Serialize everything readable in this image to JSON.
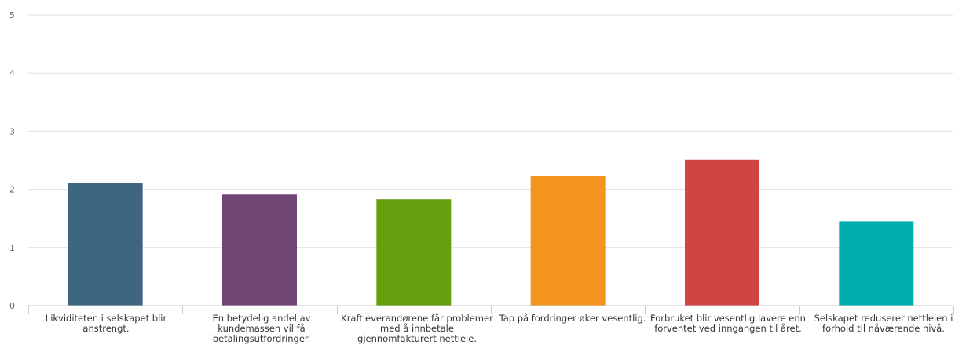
{
  "chart_data": {
    "type": "bar",
    "title": "",
    "xlabel": "",
    "ylabel": "",
    "ylim": [
      0,
      5
    ],
    "yticks": [
      0,
      1,
      2,
      3,
      4,
      5
    ],
    "grid": true,
    "categories": [
      "Likviditeten i selskapet blir anstrengt.",
      "En betydelig andel av kundemassen vil få betalingsutfordringer.",
      "Kraftleverandørene får problemer med å innbetale gjennomfakturert nettleie.",
      "Tap på fordringer øker vesentlig.",
      "Forbruket blir vesentlig lavere enn forventet ved inngangen til året.",
      "Selskapet reduserer nettleien i forhold til nåværende nivå."
    ],
    "values": [
      2.11,
      1.91,
      1.83,
      2.23,
      2.51,
      1.45
    ],
    "colors": [
      "#3f6680",
      "#6e4573",
      "#659f0e",
      "#f5931f",
      "#d04444",
      "#00aeae"
    ]
  }
}
